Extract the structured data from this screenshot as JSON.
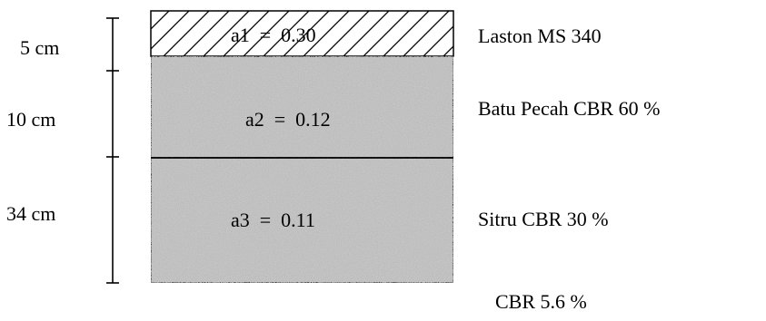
{
  "layers": [
    {
      "thickness": "5 cm",
      "coefficient": "a1  =  0.30",
      "material": "Laston MS 340",
      "fill": "hatch"
    },
    {
      "thickness": "10 cm",
      "coefficient": "a2  =  0.12",
      "material": "Batu Pecah CBR 60 %",
      "fill": "gravel"
    },
    {
      "thickness": "34 cm",
      "coefficient": "a3  =  0.11",
      "material": "Sitru CBR 30 %",
      "fill": "gravel"
    }
  ],
  "subgrade": {
    "label": "CBR 5.6 %"
  },
  "colors": {
    "line": "#000000",
    "gravel_base": "#c9c9c9",
    "hatch": "#000000"
  }
}
